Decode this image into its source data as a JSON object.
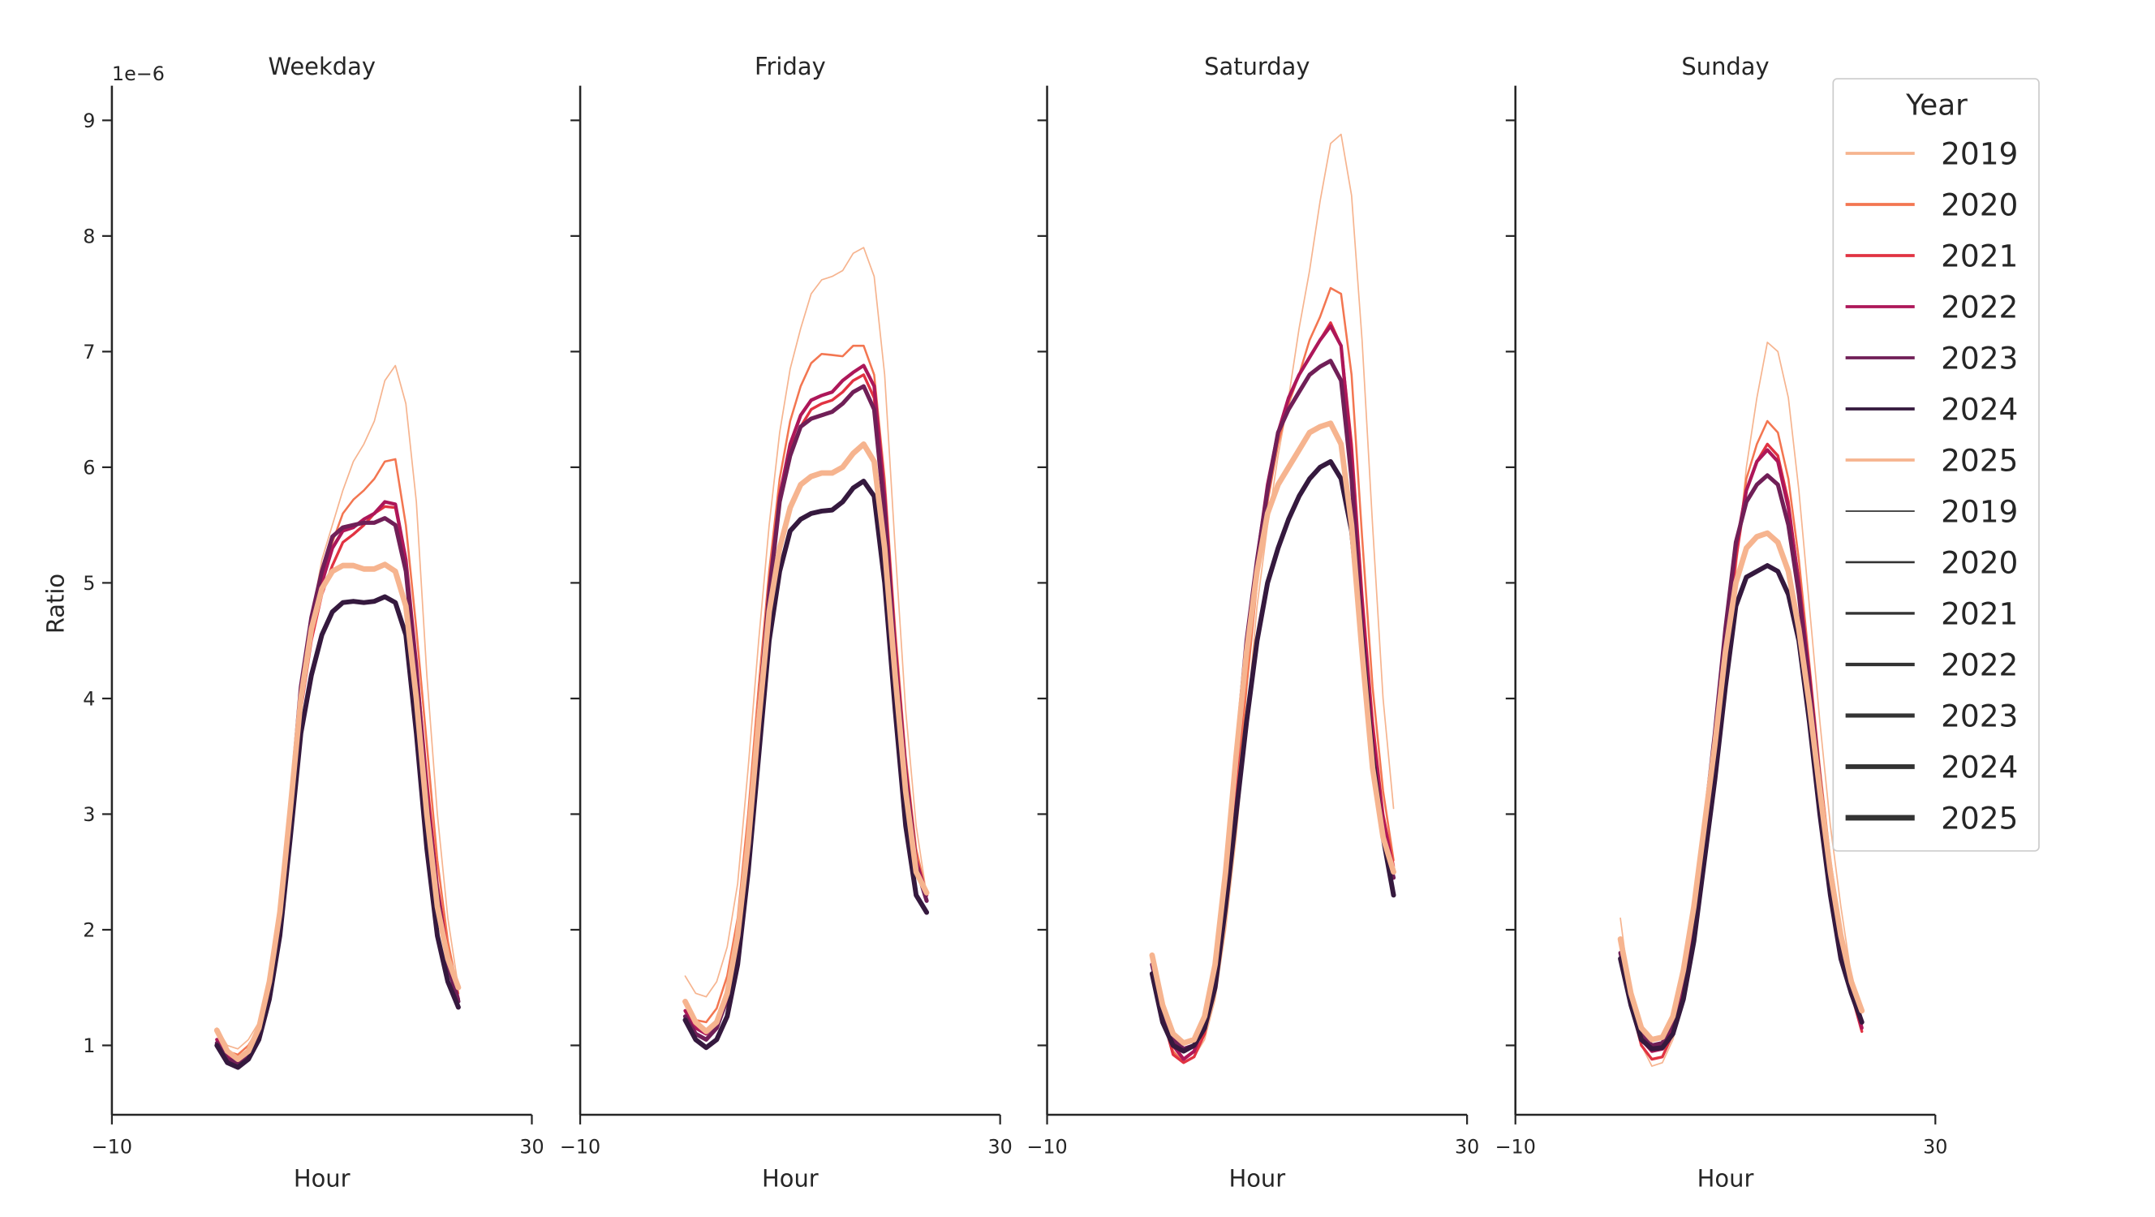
{
  "chart_data": {
    "type": "line",
    "offset_label": "1e−6",
    "ylabel": "Ratio",
    "xlabel": "Hour",
    "xlim": [
      -10,
      30
    ],
    "ylim": [
      0.4,
      9.3
    ],
    "x_ticks": [
      -10,
      30
    ],
    "x_tick_labels": [
      "−10",
      "30"
    ],
    "y_ticks": [
      1,
      2,
      3,
      4,
      5,
      6,
      7,
      8,
      9
    ],
    "y_tick_labels": [
      "1",
      "2",
      "3",
      "4",
      "5",
      "6",
      "7",
      "8",
      "9"
    ],
    "grid": false,
    "x": [
      0,
      1,
      2,
      3,
      4,
      5,
      6,
      7,
      8,
      9,
      10,
      11,
      12,
      13,
      14,
      15,
      16,
      17,
      18,
      19,
      20,
      21,
      22,
      23
    ],
    "legend": {
      "title": "Year",
      "placement": "top-right",
      "hue_entries": [
        {
          "label": "2019",
          "color": "#f6b48f"
        },
        {
          "label": "2020",
          "color": "#f37651"
        },
        {
          "label": "2021",
          "color": "#e13342"
        },
        {
          "label": "2022",
          "color": "#ad1759"
        },
        {
          "label": "2023",
          "color": "#701f57"
        },
        {
          "label": "2024",
          "color": "#35193e"
        },
        {
          "label": "2025",
          "color": "#f6b48f"
        }
      ],
      "size_entries": [
        {
          "label": "2019",
          "color": "#333333",
          "width": 1
        },
        {
          "label": "2020",
          "color": "#333333",
          "width": 1.5
        },
        {
          "label": "2021",
          "color": "#333333",
          "width": 2
        },
        {
          "label": "2022",
          "color": "#333333",
          "width": 2.5
        },
        {
          "label": "2023",
          "color": "#333333",
          "width": 3
        },
        {
          "label": "2024",
          "color": "#333333",
          "width": 3.5
        },
        {
          "label": "2025",
          "color": "#333333",
          "width": 4
        }
      ]
    },
    "panels": [
      {
        "title": "Weekday",
        "series": [
          {
            "name": "2019",
            "values": [
              1.15,
              1.0,
              0.97,
              1.05,
              1.2,
              1.6,
              2.2,
              3.1,
              4.0,
              4.7,
              5.2,
              5.5,
              5.8,
              6.05,
              6.2,
              6.4,
              6.75,
              6.88,
              6.55,
              5.7,
              4.2,
              3.0,
              2.1,
              1.5
            ]
          },
          {
            "name": "2020",
            "values": [
              1.1,
              0.95,
              0.92,
              1.0,
              1.15,
              1.55,
              2.15,
              3.0,
              3.95,
              4.65,
              5.1,
              5.35,
              5.6,
              5.72,
              5.8,
              5.9,
              6.05,
              6.07,
              5.5,
              4.6,
              3.6,
              2.6,
              1.9,
              1.45
            ]
          },
          {
            "name": "2021",
            "values": [
              1.05,
              0.9,
              0.88,
              0.95,
              1.1,
              1.5,
              2.1,
              2.95,
              3.9,
              4.5,
              4.9,
              5.15,
              5.35,
              5.42,
              5.5,
              5.6,
              5.66,
              5.65,
              5.2,
              4.3,
              3.3,
              2.4,
              1.8,
              1.4
            ]
          },
          {
            "name": "2022",
            "values": [
              1.05,
              0.9,
              0.86,
              0.93,
              1.1,
              1.5,
              2.1,
              3.0,
              4.0,
              4.65,
              5.0,
              5.3,
              5.45,
              5.48,
              5.55,
              5.6,
              5.7,
              5.68,
              5.2,
              4.3,
              3.2,
              2.35,
              1.75,
              1.4
            ]
          },
          {
            "name": "2023",
            "values": [
              1.02,
              0.88,
              0.85,
              0.92,
              1.1,
              1.5,
              2.1,
              3.05,
              4.1,
              4.7,
              5.1,
              5.4,
              5.48,
              5.5,
              5.52,
              5.52,
              5.56,
              5.5,
              5.1,
              4.2,
              3.1,
              2.3,
              1.7,
              1.38
            ]
          },
          {
            "name": "2024",
            "values": [
              1.0,
              0.85,
              0.81,
              0.88,
              1.05,
              1.4,
              1.95,
              2.8,
              3.7,
              4.2,
              4.55,
              4.75,
              4.83,
              4.84,
              4.83,
              4.84,
              4.88,
              4.83,
              4.55,
              3.7,
              2.7,
              1.95,
              1.55,
              1.33
            ]
          },
          {
            "name": "2025",
            "values": [
              1.13,
              0.95,
              0.88,
              0.95,
              1.15,
              1.55,
              2.15,
              3.05,
              4.0,
              4.6,
              4.95,
              5.1,
              5.15,
              5.15,
              5.12,
              5.12,
              5.16,
              5.1,
              4.8,
              4.0,
              3.0,
              2.2,
              1.75,
              1.5
            ]
          }
        ]
      },
      {
        "title": "Friday",
        "series": [
          {
            "name": "2019",
            "values": [
              1.6,
              1.45,
              1.42,
              1.55,
              1.85,
              2.4,
              3.4,
              4.5,
              5.5,
              6.3,
              6.85,
              7.2,
              7.5,
              7.62,
              7.65,
              7.7,
              7.85,
              7.9,
              7.65,
              6.8,
              5.3,
              3.9,
              2.9,
              2.3
            ]
          },
          {
            "name": "2020",
            "values": [
              1.35,
              1.22,
              1.2,
              1.32,
              1.6,
              2.1,
              3.0,
              4.1,
              5.1,
              5.9,
              6.4,
              6.7,
              6.9,
              6.98,
              6.97,
              6.96,
              7.05,
              7.05,
              6.8,
              5.9,
              4.6,
              3.5,
              2.7,
              2.3
            ]
          },
          {
            "name": "2021",
            "values": [
              1.3,
              1.15,
              1.1,
              1.2,
              1.45,
              1.95,
              2.8,
              3.9,
              4.9,
              5.7,
              6.15,
              6.35,
              6.5,
              6.55,
              6.58,
              6.65,
              6.75,
              6.8,
              6.6,
              5.7,
              4.4,
              3.4,
              2.6,
              2.3
            ]
          },
          {
            "name": "2022",
            "values": [
              1.3,
              1.15,
              1.1,
              1.2,
              1.45,
              1.95,
              2.8,
              3.9,
              4.95,
              5.75,
              6.2,
              6.45,
              6.58,
              6.62,
              6.65,
              6.75,
              6.82,
              6.88,
              6.7,
              5.75,
              4.45,
              3.4,
              2.6,
              2.3
            ]
          },
          {
            "name": "2023",
            "values": [
              1.25,
              1.1,
              1.05,
              1.15,
              1.4,
              1.9,
              2.75,
              3.85,
              4.9,
              5.7,
              6.1,
              6.35,
              6.42,
              6.45,
              6.48,
              6.55,
              6.65,
              6.7,
              6.5,
              5.6,
              4.3,
              3.3,
              2.55,
              2.25
            ]
          },
          {
            "name": "2024",
            "values": [
              1.22,
              1.05,
              0.98,
              1.05,
              1.25,
              1.7,
              2.5,
              3.5,
              4.5,
              5.1,
              5.45,
              5.55,
              5.6,
              5.62,
              5.63,
              5.7,
              5.82,
              5.88,
              5.75,
              5.0,
              3.9,
              2.9,
              2.3,
              2.15
            ]
          },
          {
            "name": "2025",
            "values": [
              1.38,
              1.2,
              1.12,
              1.2,
              1.45,
              1.95,
              2.75,
              3.8,
              4.75,
              5.3,
              5.65,
              5.85,
              5.92,
              5.95,
              5.95,
              6.0,
              6.12,
              6.2,
              6.05,
              5.3,
              4.2,
              3.2,
              2.5,
              2.32
            ]
          }
        ]
      },
      {
        "title": "Saturday",
        "series": [
          {
            "name": "2019",
            "values": [
              1.75,
              1.3,
              1.0,
              0.85,
              0.9,
              1.05,
              1.4,
              2.0,
              2.8,
              3.8,
              4.8,
              5.5,
              6.1,
              6.6,
              7.2,
              7.7,
              8.3,
              8.8,
              8.88,
              8.35,
              7.1,
              5.5,
              4.0,
              3.05
            ]
          },
          {
            "name": "2020",
            "values": [
              1.75,
              1.25,
              0.95,
              0.85,
              0.9,
              1.1,
              1.5,
              2.2,
              3.1,
              4.1,
              5.0,
              5.7,
              6.2,
              6.55,
              6.8,
              7.1,
              7.3,
              7.55,
              7.5,
              6.8,
              5.4,
              4.1,
              3.2,
              2.6
            ]
          },
          {
            "name": "2021",
            "values": [
              1.75,
              1.25,
              0.92,
              0.85,
              0.9,
              1.1,
              1.55,
              2.3,
              3.3,
              4.3,
              5.1,
              5.8,
              6.3,
              6.6,
              6.8,
              6.95,
              7.1,
              7.25,
              7.05,
              6.2,
              4.9,
              3.8,
              3.0,
              2.55
            ]
          },
          {
            "name": "2022",
            "values": [
              1.78,
              1.3,
              1.0,
              0.88,
              0.95,
              1.2,
              1.6,
              2.4,
              3.4,
              4.4,
              5.2,
              5.85,
              6.3,
              6.6,
              6.8,
              6.95,
              7.1,
              7.22,
              7.05,
              6.1,
              4.8,
              3.7,
              2.95,
              2.5
            ]
          },
          {
            "name": "2023",
            "values": [
              1.7,
              1.3,
              1.05,
              0.97,
              1.0,
              1.2,
              1.65,
              2.45,
              3.5,
              4.5,
              5.2,
              5.8,
              6.3,
              6.5,
              6.65,
              6.8,
              6.87,
              6.92,
              6.75,
              5.9,
              4.6,
              3.5,
              2.8,
              2.45
            ]
          },
          {
            "name": "2024",
            "values": [
              1.62,
              1.2,
              1.0,
              0.95,
              1.0,
              1.15,
              1.5,
              2.2,
              3.0,
              3.8,
              4.5,
              5.0,
              5.3,
              5.55,
              5.75,
              5.9,
              6.0,
              6.05,
              5.9,
              5.45,
              4.5,
              3.5,
              2.8,
              2.3
            ]
          },
          {
            "name": "2025",
            "values": [
              1.78,
              1.35,
              1.1,
              1.02,
              1.05,
              1.25,
              1.7,
              2.5,
              3.5,
              4.4,
              5.1,
              5.6,
              5.85,
              6.0,
              6.15,
              6.3,
              6.35,
              6.38,
              6.2,
              5.5,
              4.4,
              3.4,
              2.8,
              2.5
            ]
          }
        ]
      },
      {
        "title": "Sunday",
        "series": [
          {
            "name": "2019",
            "values": [
              2.1,
              1.4,
              1.0,
              0.82,
              0.85,
              1.05,
              1.4,
              1.9,
              2.5,
              3.2,
              4.1,
              5.1,
              6.0,
              6.6,
              7.08,
              7.0,
              6.6,
              5.8,
              4.8,
              3.8,
              2.9,
              2.2,
              1.6,
              1.2
            ]
          },
          {
            "name": "2020",
            "values": [
              1.9,
              1.35,
              1.0,
              0.88,
              0.9,
              1.1,
              1.5,
              2.0,
              2.7,
              3.4,
              4.3,
              5.2,
              5.9,
              6.2,
              6.4,
              6.3,
              5.9,
              5.2,
              4.3,
              3.4,
              2.6,
              2.0,
              1.5,
              1.15
            ]
          },
          {
            "name": "2021",
            "values": [
              1.9,
              1.35,
              1.0,
              0.88,
              0.9,
              1.1,
              1.5,
              2.05,
              2.75,
              3.5,
              4.4,
              5.2,
              5.8,
              6.05,
              6.2,
              6.1,
              5.7,
              5.0,
              4.2,
              3.3,
              2.5,
              1.95,
              1.45,
              1.12
            ]
          },
          {
            "name": "2022",
            "values": [
              1.9,
              1.4,
              1.05,
              0.95,
              0.97,
              1.15,
              1.55,
              2.1,
              2.8,
              3.6,
              4.5,
              5.3,
              5.8,
              6.05,
              6.15,
              6.05,
              5.65,
              5.0,
              4.2,
              3.3,
              2.5,
              1.95,
              1.5,
              1.15
            ]
          },
          {
            "name": "2023",
            "values": [
              1.8,
              1.4,
              1.1,
              1.0,
              1.02,
              1.2,
              1.6,
              2.2,
              2.9,
              3.7,
              4.6,
              5.35,
              5.7,
              5.85,
              5.93,
              5.85,
              5.5,
              4.9,
              4.1,
              3.25,
              2.5,
              1.95,
              1.5,
              1.2
            ]
          },
          {
            "name": "2024",
            "values": [
              1.75,
              1.35,
              1.05,
              0.97,
              0.98,
              1.1,
              1.4,
              1.9,
              2.6,
              3.3,
              4.1,
              4.8,
              5.05,
              5.1,
              5.15,
              5.1,
              4.9,
              4.5,
              3.8,
              3.0,
              2.3,
              1.75,
              1.45,
              1.2
            ]
          },
          {
            "name": "2025",
            "values": [
              1.92,
              1.45,
              1.15,
              1.05,
              1.07,
              1.25,
              1.65,
              2.2,
              2.9,
              3.6,
              4.4,
              5.0,
              5.3,
              5.4,
              5.43,
              5.35,
              5.1,
              4.6,
              3.95,
              3.2,
              2.5,
              1.95,
              1.55,
              1.3
            ]
          }
        ]
      }
    ]
  }
}
